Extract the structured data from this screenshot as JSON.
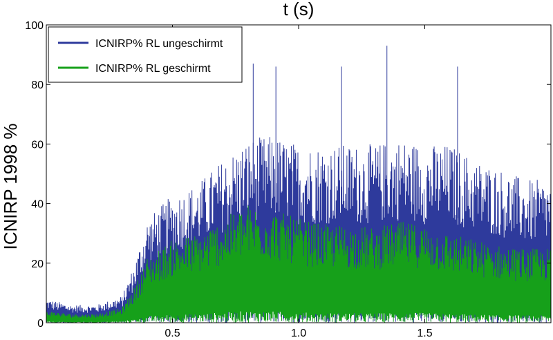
{
  "chart_data": {
    "type": "area",
    "title": "t (s)",
    "xlabel": "",
    "ylabel": "ICNIRP 1998 %",
    "xlim": [
      0.0,
      2.0
    ],
    "ylim": [
      0,
      100
    ],
    "x_ticks": [
      0.5,
      1.0,
      1.5
    ],
    "x_tick_labels": [
      "0.5",
      "1.0",
      "1.5"
    ],
    "y_ticks": [
      0,
      20,
      40,
      60,
      80,
      100
    ],
    "y_tick_labels": [
      "0",
      "20",
      "40",
      "60",
      "80",
      "100"
    ],
    "grid": false,
    "legend_position": "top-left",
    "series": [
      {
        "name": "ICNIRP% RL ungeschirmt",
        "color": "#2e3a9c",
        "x": [
          0.0,
          0.1,
          0.2,
          0.3,
          0.35,
          0.4,
          0.5,
          0.6,
          0.7,
          0.8,
          0.9,
          1.0,
          1.1,
          1.2,
          1.3,
          1.4,
          1.5,
          1.6,
          1.7,
          1.8,
          1.9,
          2.0
        ],
        "envelope_max": [
          8,
          6,
          6,
          9,
          20,
          35,
          43,
          47,
          55,
          62,
          63,
          60,
          60,
          60,
          60,
          62,
          60,
          60,
          55,
          52,
          48,
          48
        ],
        "peak_values": [
          {
            "x": 0.82,
            "y": 87
          },
          {
            "x": 0.91,
            "y": 86
          },
          {
            "x": 1.17,
            "y": 86
          },
          {
            "x": 1.35,
            "y": 93
          },
          {
            "x": 1.63,
            "y": 86
          }
        ]
      },
      {
        "name": "ICNIRP% RL geschirmt",
        "color": "#16a01a",
        "x": [
          0.0,
          0.1,
          0.2,
          0.3,
          0.35,
          0.4,
          0.5,
          0.6,
          0.7,
          0.8,
          0.9,
          1.0,
          1.1,
          1.2,
          1.3,
          1.4,
          1.5,
          1.6,
          1.7,
          1.8,
          1.9,
          2.0
        ],
        "envelope_max": [
          4,
          3,
          3,
          5,
          12,
          22,
          28,
          30,
          35,
          40,
          38,
          35,
          33,
          33,
          32,
          34,
          33,
          30,
          28,
          26,
          25,
          25
        ]
      }
    ]
  }
}
